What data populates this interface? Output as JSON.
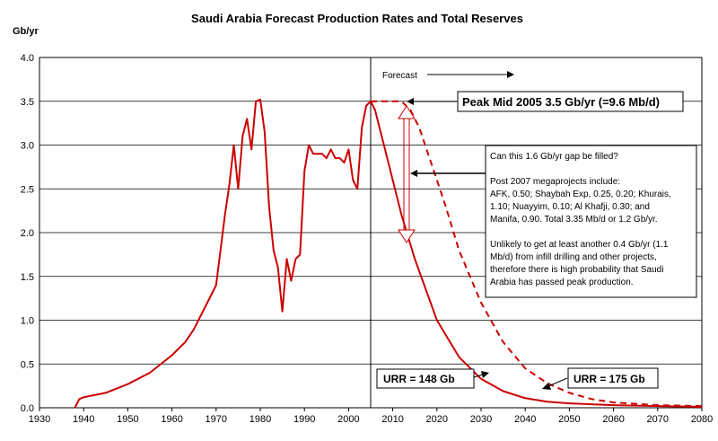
{
  "chart_data": {
    "type": "line",
    "title": "Saudi Arabia Forecast Production Rates and Total Reserves",
    "ylabel": "Gb/yr",
    "xlabel": "",
    "xlim": [
      1930,
      2080
    ],
    "ylim": [
      0.0,
      4.0
    ],
    "xticks": [
      "1930",
      "1940",
      "1950",
      "1960",
      "1970",
      "1980",
      "1990",
      "2000",
      "2010",
      "2020",
      "2030",
      "2040",
      "2050",
      "2060",
      "2070",
      "2080"
    ],
    "yticks": [
      "0.0",
      "0.5",
      "1.0",
      "1.5",
      "2.0",
      "2.5",
      "3.0",
      "3.5",
      "4.0"
    ],
    "grid": "horizontal",
    "legend": "none",
    "forecast_start_year": 2005,
    "series": [
      {
        "style": "solid",
        "color": "#cc0000",
        "x": [
          1938,
          1939,
          1940,
          1945,
          1950,
          1955,
          1960,
          1963,
          1965,
          1967,
          1968,
          1970,
          1972,
          1973,
          1974,
          1975,
          1976,
          1977,
          1978,
          1979,
          1980,
          1981,
          1982,
          1983,
          1984,
          1985,
          1986,
          1987,
          1988,
          1989,
          1990,
          1991,
          1992,
          1993,
          1994,
          1995,
          1996,
          1997,
          1998,
          1999,
          2000,
          2001,
          2002,
          2003,
          2004,
          2005,
          2006,
          2007,
          2008,
          2010,
          2012,
          2015,
          2020,
          2025,
          2030,
          2035,
          2040,
          2045,
          2050,
          2060,
          2070,
          2080
        ],
        "y": [
          0.0,
          0.1,
          0.12,
          0.17,
          0.27,
          0.4,
          0.6,
          0.75,
          0.9,
          1.1,
          1.2,
          1.4,
          2.2,
          2.55,
          3.0,
          2.5,
          3.1,
          3.3,
          2.95,
          3.5,
          3.52,
          3.15,
          2.3,
          1.8,
          1.6,
          1.1,
          1.7,
          1.45,
          1.7,
          1.75,
          2.7,
          3.0,
          2.9,
          2.9,
          2.9,
          2.85,
          2.95,
          2.85,
          2.85,
          2.8,
          2.95,
          2.6,
          2.5,
          3.2,
          3.45,
          3.5,
          3.4,
          3.2,
          3.0,
          2.6,
          2.2,
          1.7,
          1.0,
          0.58,
          0.33,
          0.19,
          0.11,
          0.07,
          0.05,
          0.03,
          0.02,
          0.01
        ]
      },
      {
        "style": "dashed",
        "color": "#cc0000",
        "x": [
          2005,
          2012,
          2014,
          2016,
          2018,
          2020,
          2022,
          2025,
          2030,
          2035,
          2040,
          2045,
          2050,
          2055,
          2060,
          2070,
          2080
        ],
        "y": [
          3.5,
          3.5,
          3.4,
          3.2,
          2.9,
          2.6,
          2.3,
          1.8,
          1.2,
          0.75,
          0.45,
          0.28,
          0.17,
          0.1,
          0.06,
          0.03,
          0.02
        ]
      }
    ],
    "annotations": {
      "forecast": "Forecast",
      "peak": "Peak Mid 2005 3.5 Gb/yr (=9.6 Mb/d)",
      "gap_question": "Can this 1.6 Gb/yr gap be filled?",
      "gap_lines": [
        "Post 2007 megaprojects include:",
        "AFK, 0.50; Shaybah Exp, 0.25, 0.20; Khurais,",
        "1.10; Nuayyim, 0.10; Al Khafji, 0.30; and",
        "Manifa, 0.90.  Total 3.35 Mb/d or 1.2 Gb/yr."
      ],
      "unlikely_lines": [
        "Unlikely to get at least another 0.4 Gb/yr (1.1",
        "Mb/d) from infill drilling and other projects,",
        "therefore there is high probability that Saudi",
        "Arabia has passed peak production."
      ],
      "urr_148": "URR = 148 Gb",
      "urr_175": "URR = 175 Gb"
    }
  }
}
